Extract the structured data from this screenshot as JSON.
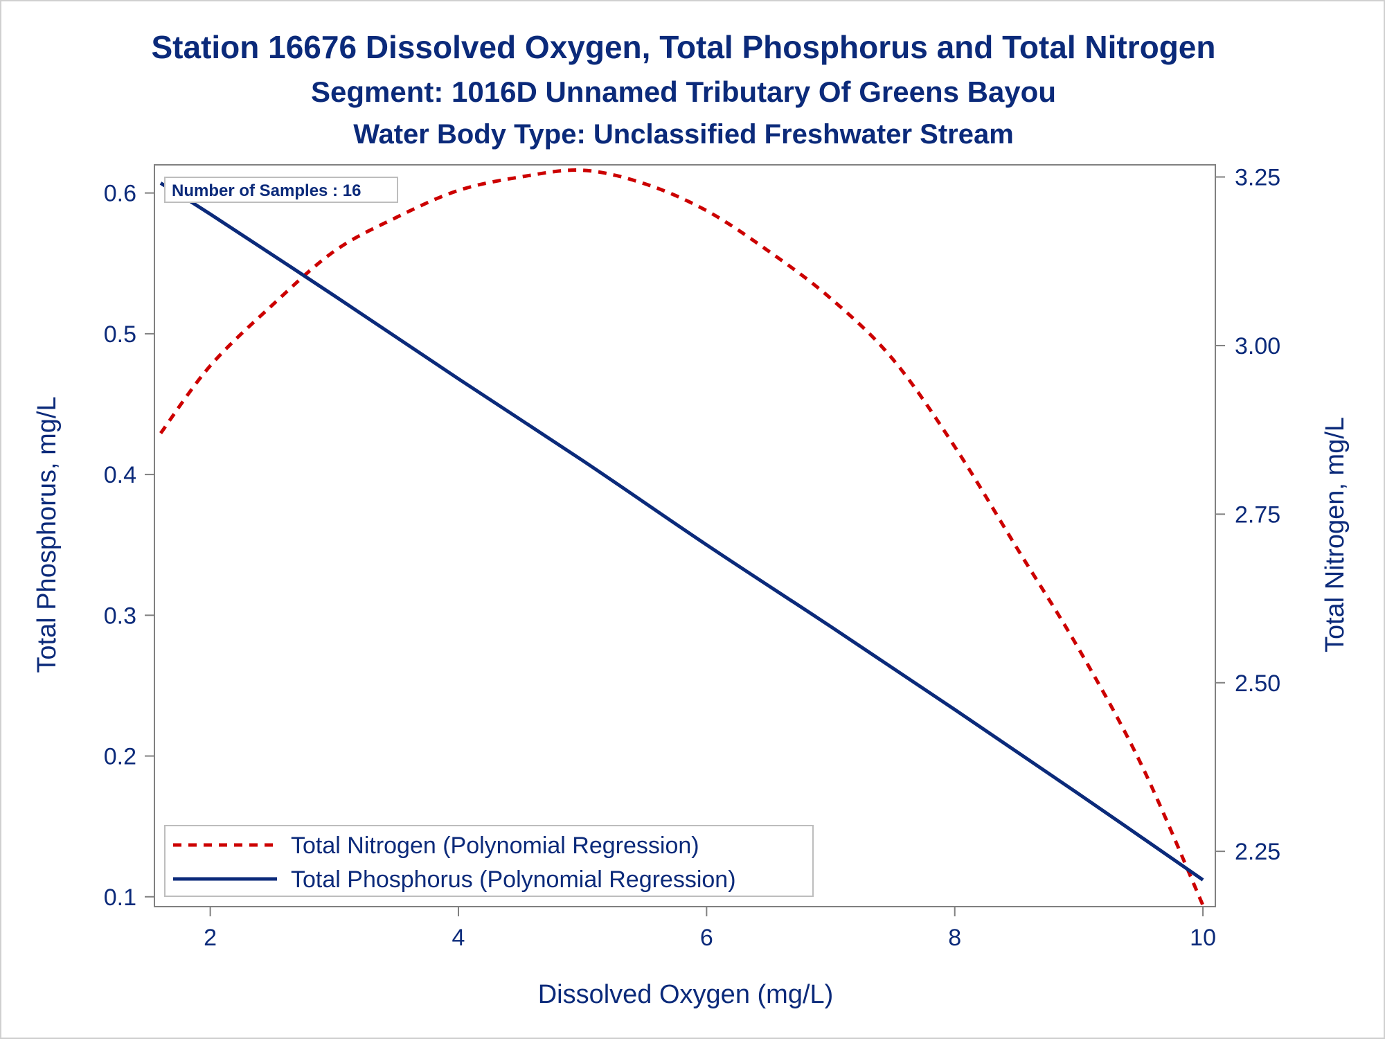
{
  "chart_data": {
    "type": "line",
    "title": "Station 16676  Dissolved Oxygen, Total Phosphorus and Total Nitrogen",
    "subtitle": "Segment: 1016D  Unnamed Tributary Of Greens Bayou",
    "subtitle2": "Water Body Type: Unclassified Freshwater Stream",
    "xlabel": "Dissolved Oxygen (mg/L)",
    "ylabel_left": "Total Phosphorus, mg/L",
    "ylabel_right": "Total Nitrogen, mg/L",
    "xlim": [
      1.55,
      10.1
    ],
    "ylim_left": [
      0.093,
      0.62
    ],
    "ylim_right": [
      2.168,
      3.268
    ],
    "x_ticks": [
      "2",
      "4",
      "6",
      "8",
      "10"
    ],
    "x_tick_values": [
      2,
      4,
      6,
      8,
      10
    ],
    "y_left_ticks": [
      "0.1",
      "0.2",
      "0.3",
      "0.4",
      "0.5",
      "0.6"
    ],
    "y_left_tick_values": [
      0.1,
      0.2,
      0.3,
      0.4,
      0.5,
      0.6
    ],
    "y_right_ticks": [
      "2.25",
      "2.50",
      "2.75",
      "3.00",
      "3.25"
    ],
    "y_right_tick_values": [
      2.25,
      2.5,
      2.75,
      3.0,
      3.25
    ],
    "annotation": "Number of Samples : 16",
    "legend_position": "bottom-left",
    "grid": false,
    "series": [
      {
        "name": "Total Nitrogen (Polynomial Regression)",
        "axis": "right",
        "style": "dashed",
        "color": "#cc0000",
        "x": [
          1.6,
          2.0,
          2.5,
          3.0,
          3.5,
          4.0,
          4.5,
          5.0,
          5.5,
          6.0,
          6.5,
          7.0,
          7.5,
          8.0,
          8.5,
          9.0,
          9.5,
          10.0
        ],
        "y": [
          2.87,
          2.97,
          3.06,
          3.14,
          3.19,
          3.23,
          3.25,
          3.26,
          3.24,
          3.2,
          3.14,
          3.07,
          2.98,
          2.85,
          2.7,
          2.55,
          2.38,
          2.17
        ]
      },
      {
        "name": "Total Phosphorus (Polynomial Regression)",
        "axis": "left",
        "style": "solid",
        "color": "#0b2a7a",
        "x": [
          1.6,
          2.0,
          3.0,
          4.0,
          5.0,
          6.0,
          7.0,
          8.0,
          9.0,
          10.0
        ],
        "y": [
          0.607,
          0.585,
          0.527,
          0.468,
          0.41,
          0.35,
          0.292,
          0.233,
          0.173,
          0.112
        ]
      }
    ]
  },
  "colors": {
    "text": "#0b2a7a",
    "axis": "#808080",
    "nitrogen": "#cc0000",
    "phosphorus": "#0b2a7a"
  }
}
